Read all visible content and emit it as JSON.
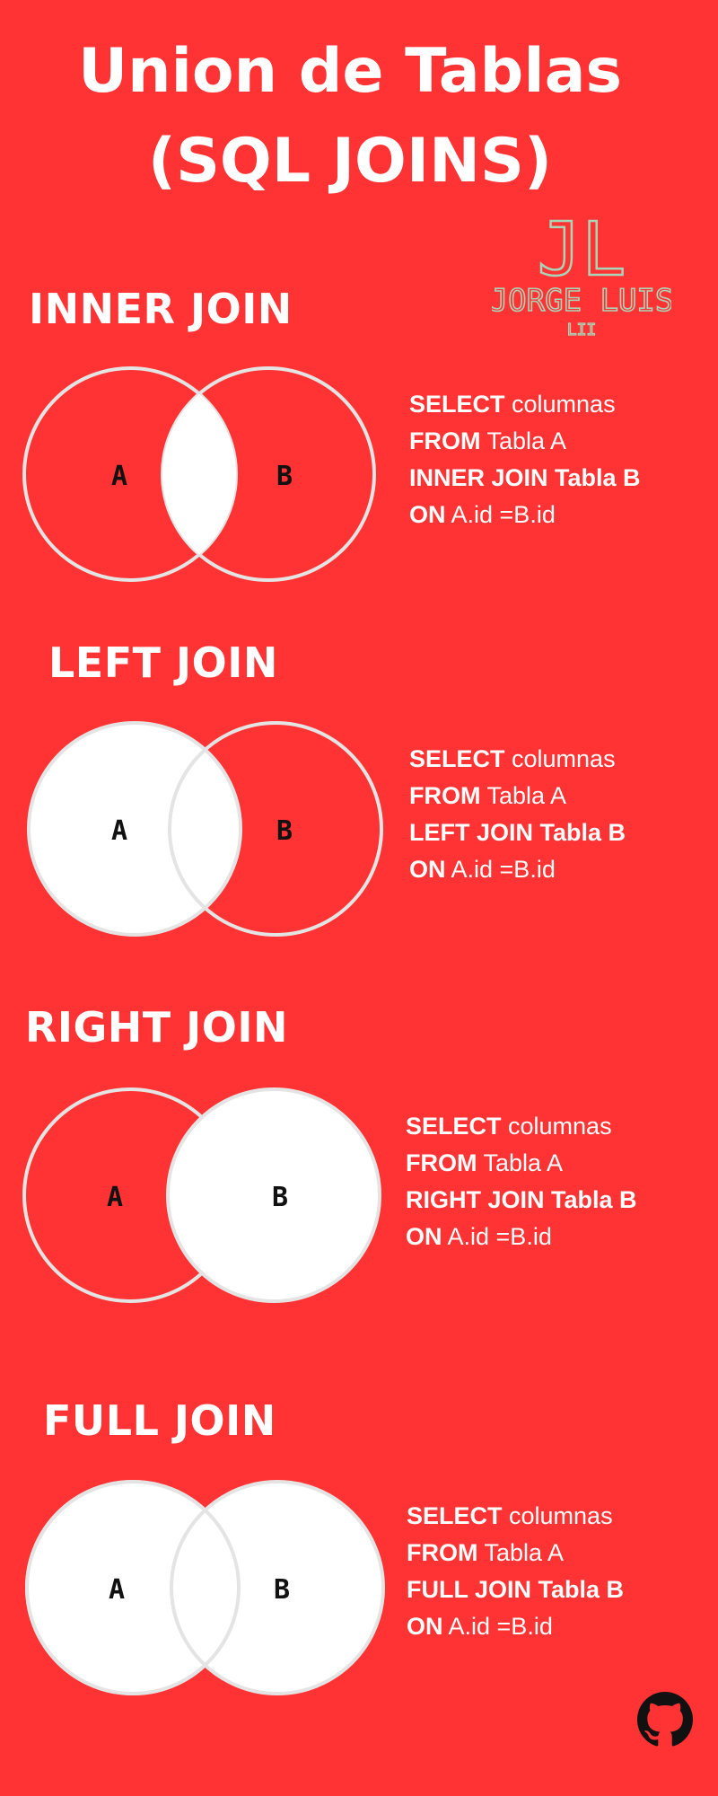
{
  "title": {
    "line1": "Union de Tablas",
    "line2": "(SQL JOINS)"
  },
  "logo": {
    "monogram": "JL",
    "name": "JORGE LUIS",
    "tag": "LII"
  },
  "sections": [
    {
      "title": "INNER JOIN",
      "label_a": "A",
      "label_b": "B",
      "fill": "intersection",
      "sql": {
        "select_kw": "SELECT",
        "select_rest": " columnas",
        "from_kw": "FROM",
        "from_rest": " Tabla A",
        "join_kw": "INNER JOIN Tabla B",
        "on_kw": "ON",
        "on_rest": " A.id =B.id"
      }
    },
    {
      "title": "LEFT JOIN",
      "label_a": "A",
      "label_b": "B",
      "fill": "left",
      "sql": {
        "select_kw": "SELECT",
        "select_rest": " columnas",
        "from_kw": "FROM",
        "from_rest": " Tabla A",
        "join_kw": "LEFT JOIN Tabla B",
        "on_kw": "ON",
        "on_rest": " A.id =B.id"
      }
    },
    {
      "title": "RIGHT JOIN",
      "label_a": "A",
      "label_b": "B",
      "fill": "right",
      "sql": {
        "select_kw": "SELECT",
        "select_rest": " columnas",
        "from_kw": "FROM",
        "from_rest": " Tabla A",
        "join_kw": "RIGHT JOIN Tabla B",
        "on_kw": "ON",
        "on_rest": " A.id =B.id"
      }
    },
    {
      "title": "FULL JOIN",
      "label_a": "A",
      "label_b": "B",
      "fill": "full",
      "sql": {
        "select_kw": "SELECT",
        "select_rest": " columnas",
        "from_kw": "FROM",
        "from_rest": " Tabla A",
        "join_kw": "FULL JOIN Tabla B",
        "on_kw": "ON",
        "on_rest": " A.id =B.id"
      }
    }
  ],
  "footer": {
    "icon": "github-icon"
  },
  "colors": {
    "background": "#FF3333",
    "circle_fill": "#ffffff",
    "circle_stroke": "#e4e4e4",
    "logo_stroke": "#a9d4b8"
  }
}
